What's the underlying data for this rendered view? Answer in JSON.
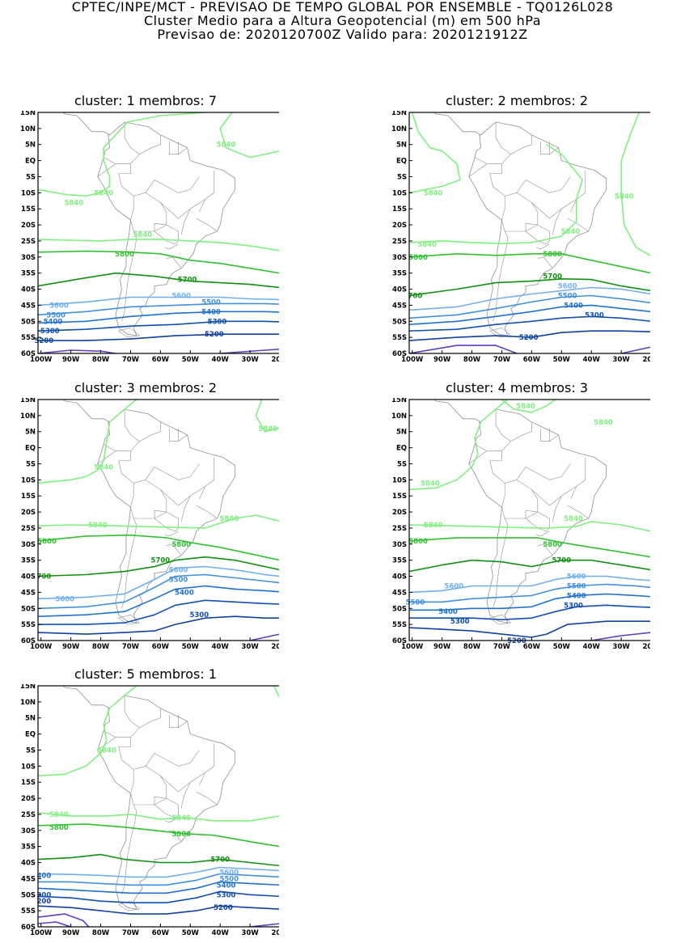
{
  "header": {
    "line1": "CPTEC/INPE/MCT - PREVISAO DE TEMPO GLOBAL POR ENSEMBLE - TQ0126L028",
    "line2": "Cluster Medio para a Altura Geopotencial (m) em 500 hPa",
    "line3": "Previsao de: 2020120700Z    Valido para: 2020121912Z"
  },
  "axes": {
    "lat_labels": [
      "15N",
      "10N",
      "5N",
      "EQ",
      "5S",
      "10S",
      "15S",
      "20S",
      "25S",
      "30S",
      "35S",
      "40S",
      "45S",
      "50S",
      "55S",
      "60S"
    ],
    "lon_labels": [
      "100W",
      "90W",
      "80W",
      "70W",
      "60W",
      "50W",
      "40W",
      "30W",
      "20W"
    ]
  },
  "colors": {
    "c5840": "#80f080",
    "c5800": "#30c030",
    "c5700": "#109010",
    "c5600": "#70b0f0",
    "c5500": "#4090e0",
    "c5400": "#2070d0",
    "c5300": "#1050b0",
    "c5200": "#1040a0",
    "c5100": "#6040c0",
    "coast": "#909090"
  },
  "panels": [
    {
      "title": "cluster: 1   membros: 7",
      "labels": [
        {
          "text": "5840",
          "lon": -38,
          "lat": 5
        },
        {
          "text": "5840",
          "lon": -79,
          "lat": -10
        },
        {
          "text": "5840",
          "lon": -89,
          "lat": -13
        },
        {
          "text": "5840",
          "lon": -66,
          "lat": -23
        },
        {
          "text": "5800",
          "lon": -72,
          "lat": -29
        },
        {
          "text": "5700",
          "lon": -51,
          "lat": -37
        },
        {
          "text": "5600",
          "lon": -94,
          "lat": -45
        },
        {
          "text": "5600",
          "lon": -53,
          "lat": -42
        },
        {
          "text": "5500",
          "lon": -95,
          "lat": -48
        },
        {
          "text": "5500",
          "lon": -43,
          "lat": -44
        },
        {
          "text": "5400",
          "lon": -96,
          "lat": -50
        },
        {
          "text": "5400",
          "lon": -43,
          "lat": -47
        },
        {
          "text": "5300",
          "lon": -97,
          "lat": -53
        },
        {
          "text": "5300",
          "lon": -41,
          "lat": -50
        },
        {
          "text": "5200",
          "lon": -99,
          "lat": -56
        },
        {
          "text": "5200",
          "lon": -42,
          "lat": -54
        }
      ]
    },
    {
      "title": "cluster: 2   membros: 2",
      "labels": [
        {
          "text": "5840",
          "lon": -93,
          "lat": -10
        },
        {
          "text": "5840",
          "lon": -29,
          "lat": -11
        },
        {
          "text": "5840",
          "lon": -47,
          "lat": -22
        },
        {
          "text": "5840",
          "lon": -95,
          "lat": -26
        },
        {
          "text": "5800",
          "lon": -98,
          "lat": -30
        },
        {
          "text": "5800",
          "lon": -53,
          "lat": -29
        },
        {
          "text": "5700",
          "lon": -53,
          "lat": -36
        },
        {
          "text": "700",
          "lon": -99,
          "lat": -42
        },
        {
          "text": "5600",
          "lon": -48,
          "lat": -39
        },
        {
          "text": "5500",
          "lon": -48,
          "lat": -42
        },
        {
          "text": "5400",
          "lon": -46,
          "lat": -45
        },
        {
          "text": "5300",
          "lon": -39,
          "lat": -48
        },
        {
          "text": "5200",
          "lon": -61,
          "lat": -55
        }
      ]
    },
    {
      "title": "cluster: 3   membros: 2",
      "labels": [
        {
          "text": "5840",
          "lon": -24,
          "lat": 6
        },
        {
          "text": "5840",
          "lon": -79,
          "lat": -6
        },
        {
          "text": "5840",
          "lon": -37,
          "lat": -22
        },
        {
          "text": "5840",
          "lon": -81,
          "lat": -24
        },
        {
          "text": "5800",
          "lon": -98,
          "lat": -29
        },
        {
          "text": "5800",
          "lon": -53,
          "lat": -30
        },
        {
          "text": "5700",
          "lon": -60,
          "lat": -35
        },
        {
          "text": "700",
          "lon": -99,
          "lat": -40
        },
        {
          "text": "5600",
          "lon": -54,
          "lat": -38
        },
        {
          "text": "5600",
          "lon": -92,
          "lat": -47
        },
        {
          "text": "5500",
          "lon": -54,
          "lat": -41
        },
        {
          "text": "5400",
          "lon": -52,
          "lat": -45
        },
        {
          "text": "5300",
          "lon": -47,
          "lat": -52
        }
      ]
    },
    {
      "title": "cluster: 4   membros: 3",
      "labels": [
        {
          "text": "5840",
          "lon": -62,
          "lat": 13
        },
        {
          "text": "5840",
          "lon": -36,
          "lat": 8
        },
        {
          "text": "5840",
          "lon": -94,
          "lat": -11
        },
        {
          "text": "5840",
          "lon": -46,
          "lat": -22
        },
        {
          "text": "5840",
          "lon": -93,
          "lat": -24
        },
        {
          "text": "5800",
          "lon": -98,
          "lat": -29
        },
        {
          "text": "5800",
          "lon": -53,
          "lat": -30
        },
        {
          "text": "5700",
          "lon": -50,
          "lat": -35
        },
        {
          "text": "5600",
          "lon": -86,
          "lat": -43
        },
        {
          "text": "5600",
          "lon": -45,
          "lat": -40
        },
        {
          "text": "5500",
          "lon": -99,
          "lat": -48
        },
        {
          "text": "5500",
          "lon": -45,
          "lat": -43
        },
        {
          "text": "5400",
          "lon": -88,
          "lat": -51
        },
        {
          "text": "5400",
          "lon": -45,
          "lat": -46
        },
        {
          "text": "5300",
          "lon": -84,
          "lat": -54
        },
        {
          "text": "5300",
          "lon": -46,
          "lat": -49
        },
        {
          "text": "5200",
          "lon": -65,
          "lat": -60
        }
      ]
    },
    {
      "title": "cluster: 5   membros: 1",
      "labels": [
        {
          "text": "5840",
          "lon": -78,
          "lat": -5
        },
        {
          "text": "5840",
          "lon": -94,
          "lat": -25
        },
        {
          "text": "5840",
          "lon": -53,
          "lat": -26
        },
        {
          "text": "5800",
          "lon": -94,
          "lat": -29
        },
        {
          "text": "5800",
          "lon": -53,
          "lat": -31
        },
        {
          "text": "5700",
          "lon": -40,
          "lat": -39
        },
        {
          "text": "400",
          "lon": -99,
          "lat": -44
        },
        {
          "text": "5600",
          "lon": -37,
          "lat": -43
        },
        {
          "text": "5500",
          "lon": -37,
          "lat": -45
        },
        {
          "text": "5400",
          "lon": -38,
          "lat": -47
        },
        {
          "text": "5300",
          "lon": -38,
          "lat": -50
        },
        {
          "text": "300",
          "lon": -99,
          "lat": -50
        },
        {
          "text": "200",
          "lon": -99,
          "lat": -52
        },
        {
          "text": "5200",
          "lon": -39,
          "lat": -54
        }
      ]
    }
  ]
}
